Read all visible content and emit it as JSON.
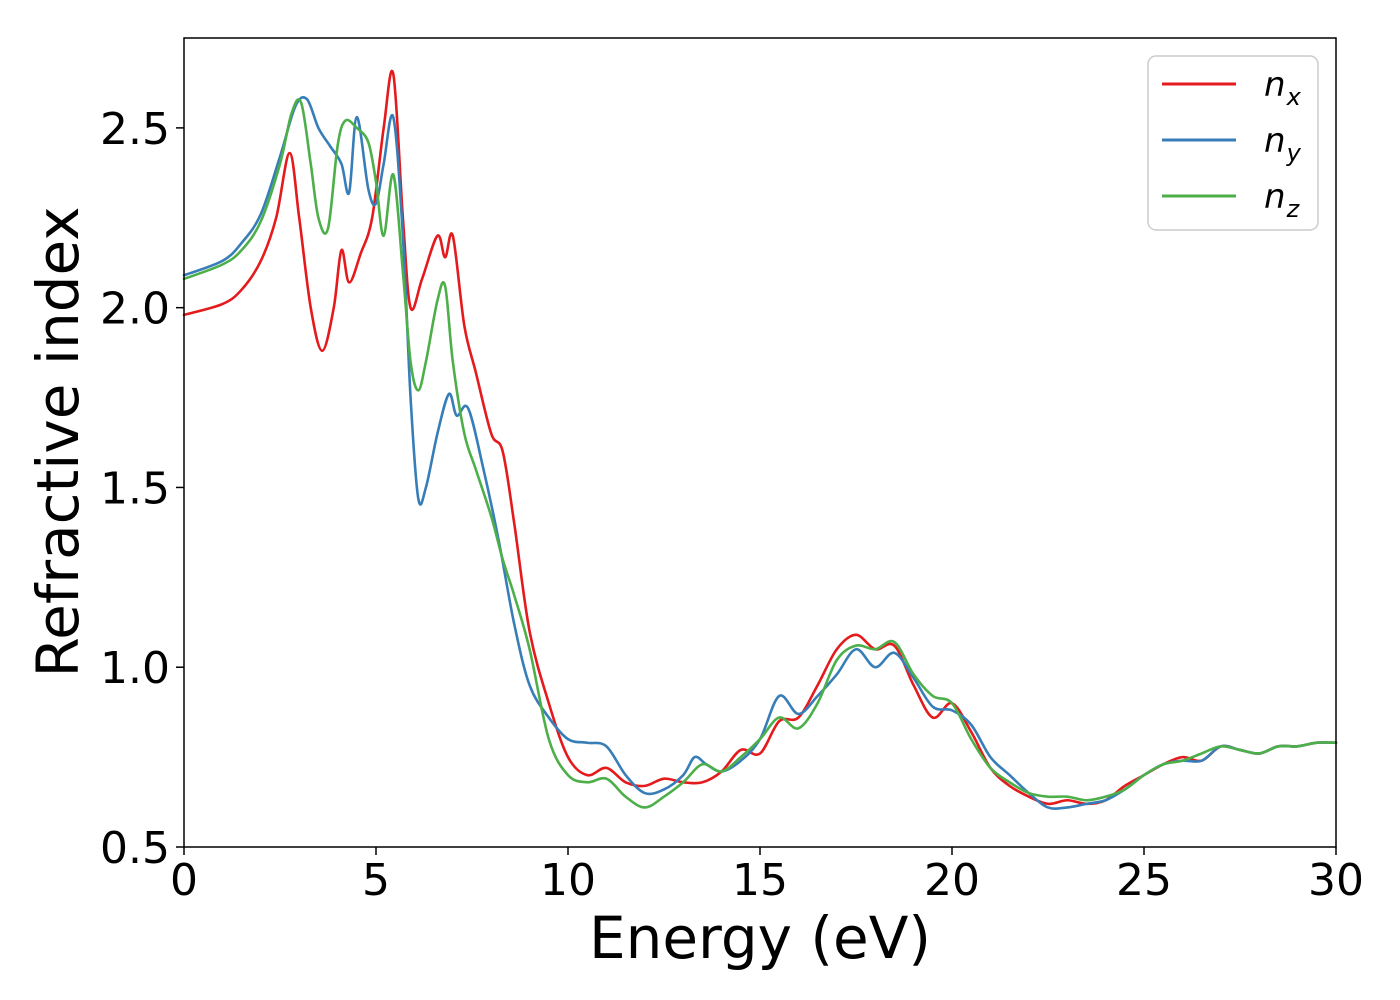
{
  "chart_data": {
    "type": "line",
    "title": "",
    "xlabel": "Energy (eV)",
    "ylabel": "Refractive index",
    "xlim": [
      0,
      30
    ],
    "ylim": [
      0.5,
      2.75
    ],
    "xticks": [
      0,
      5,
      10,
      15,
      20,
      25,
      30
    ],
    "yticks": [
      0.5,
      1.0,
      1.5,
      2.0,
      2.5
    ],
    "xtick_labels": [
      "0",
      "5",
      "10",
      "15",
      "20",
      "25",
      "30"
    ],
    "ytick_labels": [
      "0.5",
      "1.0",
      "1.5",
      "2.0",
      "2.5"
    ],
    "grid": false,
    "legend_position": "top-right",
    "series": [
      {
        "name": "n",
        "subscript": "x",
        "color": "#e41a1c",
        "x": [
          0,
          1,
          1.5,
          2,
          2.4,
          2.75,
          3.0,
          3.3,
          3.6,
          3.9,
          4.1,
          4.3,
          4.6,
          4.9,
          5.2,
          5.45,
          5.7,
          5.9,
          6.2,
          6.6,
          6.8,
          7.0,
          7.3,
          7.6,
          8.0,
          8.3,
          8.6,
          9.0,
          9.5,
          10.0,
          10.5,
          11.0,
          11.5,
          12.0,
          12.5,
          13.0,
          13.5,
          14.0,
          14.5,
          15.0,
          15.5,
          16.0,
          16.5,
          17.0,
          17.5,
          18.0,
          18.5,
          19.0,
          19.5,
          20.0,
          20.5,
          21.0,
          21.5,
          22.0,
          22.5,
          23.0,
          23.5,
          24.0,
          24.5,
          25.0,
          25.5,
          26.0,
          26.5,
          27.0,
          27.5,
          28.0,
          28.5,
          29.0,
          29.5,
          30.0
        ],
        "y": [
          1.98,
          2.01,
          2.05,
          2.13,
          2.25,
          2.43,
          2.25,
          2.0,
          1.88,
          2.0,
          2.16,
          2.07,
          2.15,
          2.25,
          2.5,
          2.65,
          2.25,
          2.0,
          2.08,
          2.2,
          2.14,
          2.2,
          1.95,
          1.82,
          1.65,
          1.6,
          1.4,
          1.1,
          0.9,
          0.75,
          0.7,
          0.72,
          0.68,
          0.67,
          0.69,
          0.68,
          0.68,
          0.71,
          0.77,
          0.76,
          0.85,
          0.86,
          0.95,
          1.05,
          1.09,
          1.05,
          1.06,
          0.95,
          0.86,
          0.9,
          0.82,
          0.72,
          0.67,
          0.64,
          0.62,
          0.63,
          0.62,
          0.63,
          0.67,
          0.7,
          0.73,
          0.75,
          0.74,
          0.78,
          0.77,
          0.76,
          0.78,
          0.78,
          0.79,
          0.79
        ]
      },
      {
        "name": "n",
        "subscript": "y",
        "color": "#377eb8",
        "x": [
          0,
          1,
          1.5,
          2,
          2.5,
          2.9,
          3.2,
          3.5,
          3.8,
          4.1,
          4.3,
          4.5,
          4.8,
          5.0,
          5.2,
          5.45,
          5.7,
          5.9,
          6.1,
          6.3,
          6.6,
          6.9,
          7.1,
          7.4,
          7.8,
          8.2,
          8.6,
          9.0,
          9.5,
          10.0,
          10.5,
          11.0,
          11.5,
          12.0,
          12.5,
          13.0,
          13.3,
          13.6,
          14.0,
          14.5,
          15.0,
          15.5,
          16.0,
          16.5,
          17.0,
          17.5,
          18.0,
          18.5,
          19.0,
          19.5,
          20.0,
          20.5,
          21.0,
          21.5,
          22.0,
          22.5,
          23.0,
          23.5,
          24.0,
          24.5,
          25.0,
          25.5,
          26.0,
          26.5,
          27.0,
          27.5,
          28.0,
          28.5,
          29.0,
          29.5,
          30.0
        ],
        "y": [
          2.09,
          2.13,
          2.18,
          2.26,
          2.42,
          2.56,
          2.58,
          2.5,
          2.45,
          2.4,
          2.32,
          2.53,
          2.33,
          2.29,
          2.4,
          2.53,
          2.2,
          1.75,
          1.47,
          1.5,
          1.65,
          1.76,
          1.7,
          1.72,
          1.55,
          1.35,
          1.12,
          0.95,
          0.86,
          0.8,
          0.79,
          0.78,
          0.7,
          0.65,
          0.66,
          0.7,
          0.75,
          0.73,
          0.71,
          0.74,
          0.8,
          0.92,
          0.87,
          0.92,
          0.98,
          1.05,
          1.0,
          1.04,
          0.97,
          0.89,
          0.88,
          0.84,
          0.75,
          0.7,
          0.65,
          0.61,
          0.61,
          0.62,
          0.63,
          0.66,
          0.7,
          0.73,
          0.74,
          0.74,
          0.78,
          0.77,
          0.76,
          0.78,
          0.78,
          0.79,
          0.79
        ]
      },
      {
        "name": "n",
        "subscript": "z",
        "color": "#4daf4a",
        "x": [
          0,
          1,
          1.5,
          2,
          2.5,
          2.8,
          3.05,
          3.3,
          3.5,
          3.75,
          4.0,
          4.2,
          4.5,
          4.8,
          5.0,
          5.2,
          5.45,
          5.7,
          5.9,
          6.1,
          6.3,
          6.6,
          6.8,
          7.0,
          7.3,
          7.6,
          8.0,
          8.3,
          8.6,
          9.0,
          9.5,
          10.0,
          10.5,
          11.0,
          11.5,
          12.0,
          12.5,
          13.0,
          13.5,
          14.0,
          14.5,
          15.0,
          15.5,
          16.0,
          16.5,
          17.0,
          17.5,
          18.0,
          18.5,
          19.0,
          19.5,
          20.0,
          20.5,
          21.0,
          21.5,
          22.0,
          22.5,
          23.0,
          23.5,
          24.0,
          24.5,
          25.0,
          25.5,
          26.0,
          26.5,
          27.0,
          27.5,
          28.0,
          28.5,
          29.0,
          29.5,
          30.0
        ],
        "y": [
          2.08,
          2.12,
          2.16,
          2.24,
          2.4,
          2.54,
          2.57,
          2.4,
          2.25,
          2.22,
          2.45,
          2.52,
          2.5,
          2.46,
          2.35,
          2.2,
          2.37,
          2.1,
          1.85,
          1.77,
          1.85,
          2.02,
          2.06,
          1.85,
          1.65,
          1.55,
          1.42,
          1.3,
          1.2,
          1.05,
          0.8,
          0.7,
          0.68,
          0.69,
          0.64,
          0.61,
          0.64,
          0.68,
          0.73,
          0.71,
          0.75,
          0.8,
          0.86,
          0.83,
          0.9,
          1.02,
          1.06,
          1.05,
          1.07,
          0.98,
          0.92,
          0.9,
          0.8,
          0.72,
          0.68,
          0.65,
          0.64,
          0.64,
          0.63,
          0.64,
          0.66,
          0.7,
          0.73,
          0.74,
          0.76,
          0.78,
          0.77,
          0.76,
          0.78,
          0.78,
          0.79,
          0.79
        ]
      }
    ]
  }
}
